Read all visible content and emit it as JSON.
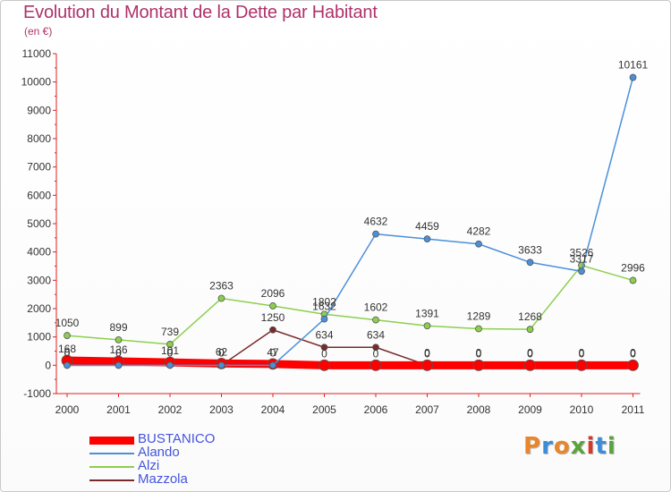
{
  "title": "Evolution du Montant de la Dette par Habitant",
  "unit": "(en €)",
  "brand": {
    "letters": [
      "P",
      "r",
      "o",
      "x",
      "i",
      "t",
      "i"
    ],
    "colors": [
      "#e9852b",
      "#3c8dd8",
      "#e9852b",
      "#5aa33c",
      "#d43a2a",
      "#3c8dd8",
      "#5aa33c"
    ]
  },
  "chart_data": {
    "type": "line",
    "title": "Evolution du Montant de la Dette par Habitant",
    "ylabel": "(en €)",
    "xlabel": "",
    "ylim": [
      -1000,
      11000
    ],
    "yticks": [
      -1000,
      0,
      1000,
      2000,
      3000,
      4000,
      5000,
      6000,
      7000,
      8000,
      9000,
      10000,
      11000
    ],
    "grid": false,
    "legend_position": "bottom-left",
    "categories": [
      "2000",
      "2001",
      "2002",
      "2003",
      "2004",
      "2005",
      "2006",
      "2007",
      "2008",
      "2009",
      "2010",
      "2011"
    ],
    "series": [
      {
        "name": "BUSTANICO",
        "color": "#ff0000",
        "values": [
          168,
          136,
          101,
          62,
          47,
          0,
          0,
          0,
          0,
          0,
          0,
          0
        ],
        "labels": [
          "168",
          "136",
          "101",
          "62",
          "47",
          "0",
          "0",
          "0",
          "0",
          "0",
          "0",
          "0"
        ]
      },
      {
        "name": "Alando",
        "color": "#4a90d9",
        "values": [
          0,
          0,
          0,
          0,
          0,
          1632,
          4632,
          4459,
          4282,
          3633,
          3317,
          10161
        ],
        "labels": [
          "0",
          "0",
          "0",
          "0",
          "0",
          "1632",
          "4632",
          "4459",
          "4282",
          "3633",
          "3317",
          "10161"
        ]
      },
      {
        "name": "Alzi",
        "color": "#8ccf4d",
        "values": [
          1050,
          899,
          739,
          2363,
          2096,
          1802,
          1602,
          1391,
          1289,
          1268,
          3526,
          2996
        ],
        "labels": [
          "1050",
          "899",
          "739",
          "2363",
          "2096",
          "1802",
          "1602",
          "1391",
          "1289",
          "1268",
          "3526",
          "2996"
        ]
      },
      {
        "name": "Mazzola",
        "color": "#7a2a2a",
        "values": [
          0,
          0,
          0,
          0,
          1250,
          634,
          634,
          0,
          0,
          0,
          0,
          0
        ],
        "labels": [
          "0",
          "0",
          "0",
          "0",
          "1250",
          "634",
          "634",
          "0",
          "0",
          "0",
          "0",
          "0"
        ]
      }
    ]
  }
}
